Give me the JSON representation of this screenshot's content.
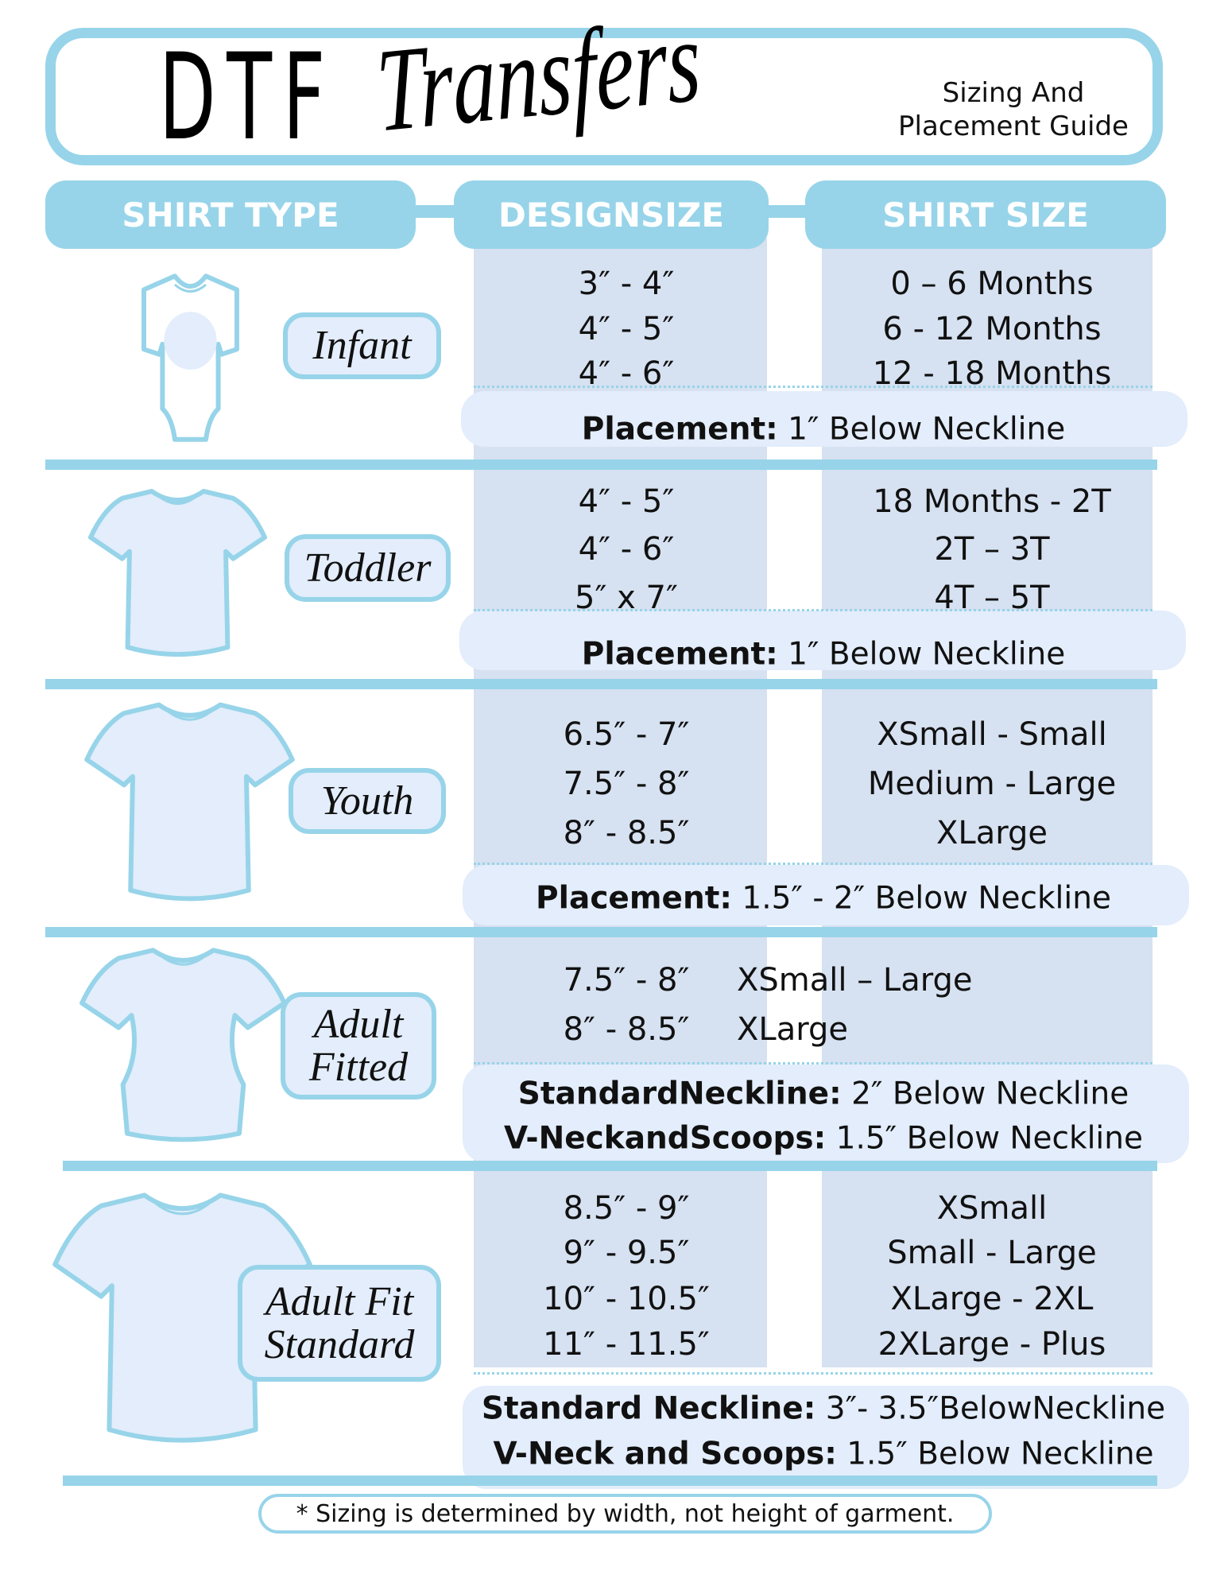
{
  "header": {
    "title_block": "DTF",
    "title_script": "Transfers",
    "subtitle_line1": "Sizing And",
    "subtitle_line2": "Placement Guide"
  },
  "columns": {
    "shirt_type": "SHIRT TYPE",
    "design_size": "DESIGNSIZE",
    "shirt_size": "SHIRT SIZE"
  },
  "colors": {
    "accent_blue": "#97d4e9",
    "column_bg": "#d6e1f1",
    "placement_bg": "#e3edfb",
    "shirt_fill": "#e3edfb"
  },
  "rows": [
    {
      "type": "Infant",
      "icon": "onesie-icon",
      "design_sizes": [
        "3″ - 4″",
        "4″ - 5″",
        "4″ - 6″"
      ],
      "shirt_sizes": [
        "0 – 6 Months",
        "6 - 12 Months",
        "12 - 18 Months"
      ],
      "placement": [
        {
          "label": "Placement:",
          "value": "1″ Below Neckline"
        }
      ]
    },
    {
      "type": "Toddler",
      "icon": "tshirt-icon",
      "design_sizes": [
        "4″ - 5″",
        "4″ - 6″",
        "5″ x 7″"
      ],
      "shirt_sizes": [
        "18 Months - 2T",
        "2T – 3T",
        "4T – 5T"
      ],
      "placement": [
        {
          "label": "Placement:",
          "value": "1″ Below Neckline"
        }
      ]
    },
    {
      "type": "Youth",
      "icon": "tshirt-icon",
      "design_sizes": [
        "6.5″ - 7″",
        "7.5″ - 8″",
        "8″ - 8.5″"
      ],
      "shirt_sizes": [
        "XSmall - Small",
        "Medium - Large",
        "XLarge"
      ],
      "placement": [
        {
          "label": "Placement:",
          "value": "1.5″ - 2″ Below Neckline"
        }
      ]
    },
    {
      "type": "Adult Fitted",
      "icon": "fitted-tshirt-icon",
      "design_sizes": [
        "7.5″ - 8″",
        "8″ - 8.5″"
      ],
      "shirt_sizes": [
        "XSmall – Large",
        "XLarge"
      ],
      "placement": [
        {
          "label": "StandardNeckline:",
          "value": "2″ Below Neckline"
        },
        {
          "label": "V-NeckandScoops:",
          "value": "1.5″ Below Neckline"
        }
      ]
    },
    {
      "type": "Adult Fit Standard",
      "icon": "tshirt-icon",
      "design_sizes": [
        "8.5″ - 9″",
        "9″ - 9.5″",
        "10″ - 10.5″",
        "11″ - 11.5″"
      ],
      "shirt_sizes": [
        "XSmall",
        "Small - Large",
        "XLarge - 2XL",
        "2XLarge - Plus"
      ],
      "placement": [
        {
          "label": "Standard Neckline:",
          "value": "3″- 3.5″BelowNeckline"
        },
        {
          "label": "V-Neck and Scoops:",
          "value": "1.5″ Below Neckline"
        }
      ]
    }
  ],
  "footer": {
    "note": "* Sizing is determined by width, not height of garment."
  }
}
